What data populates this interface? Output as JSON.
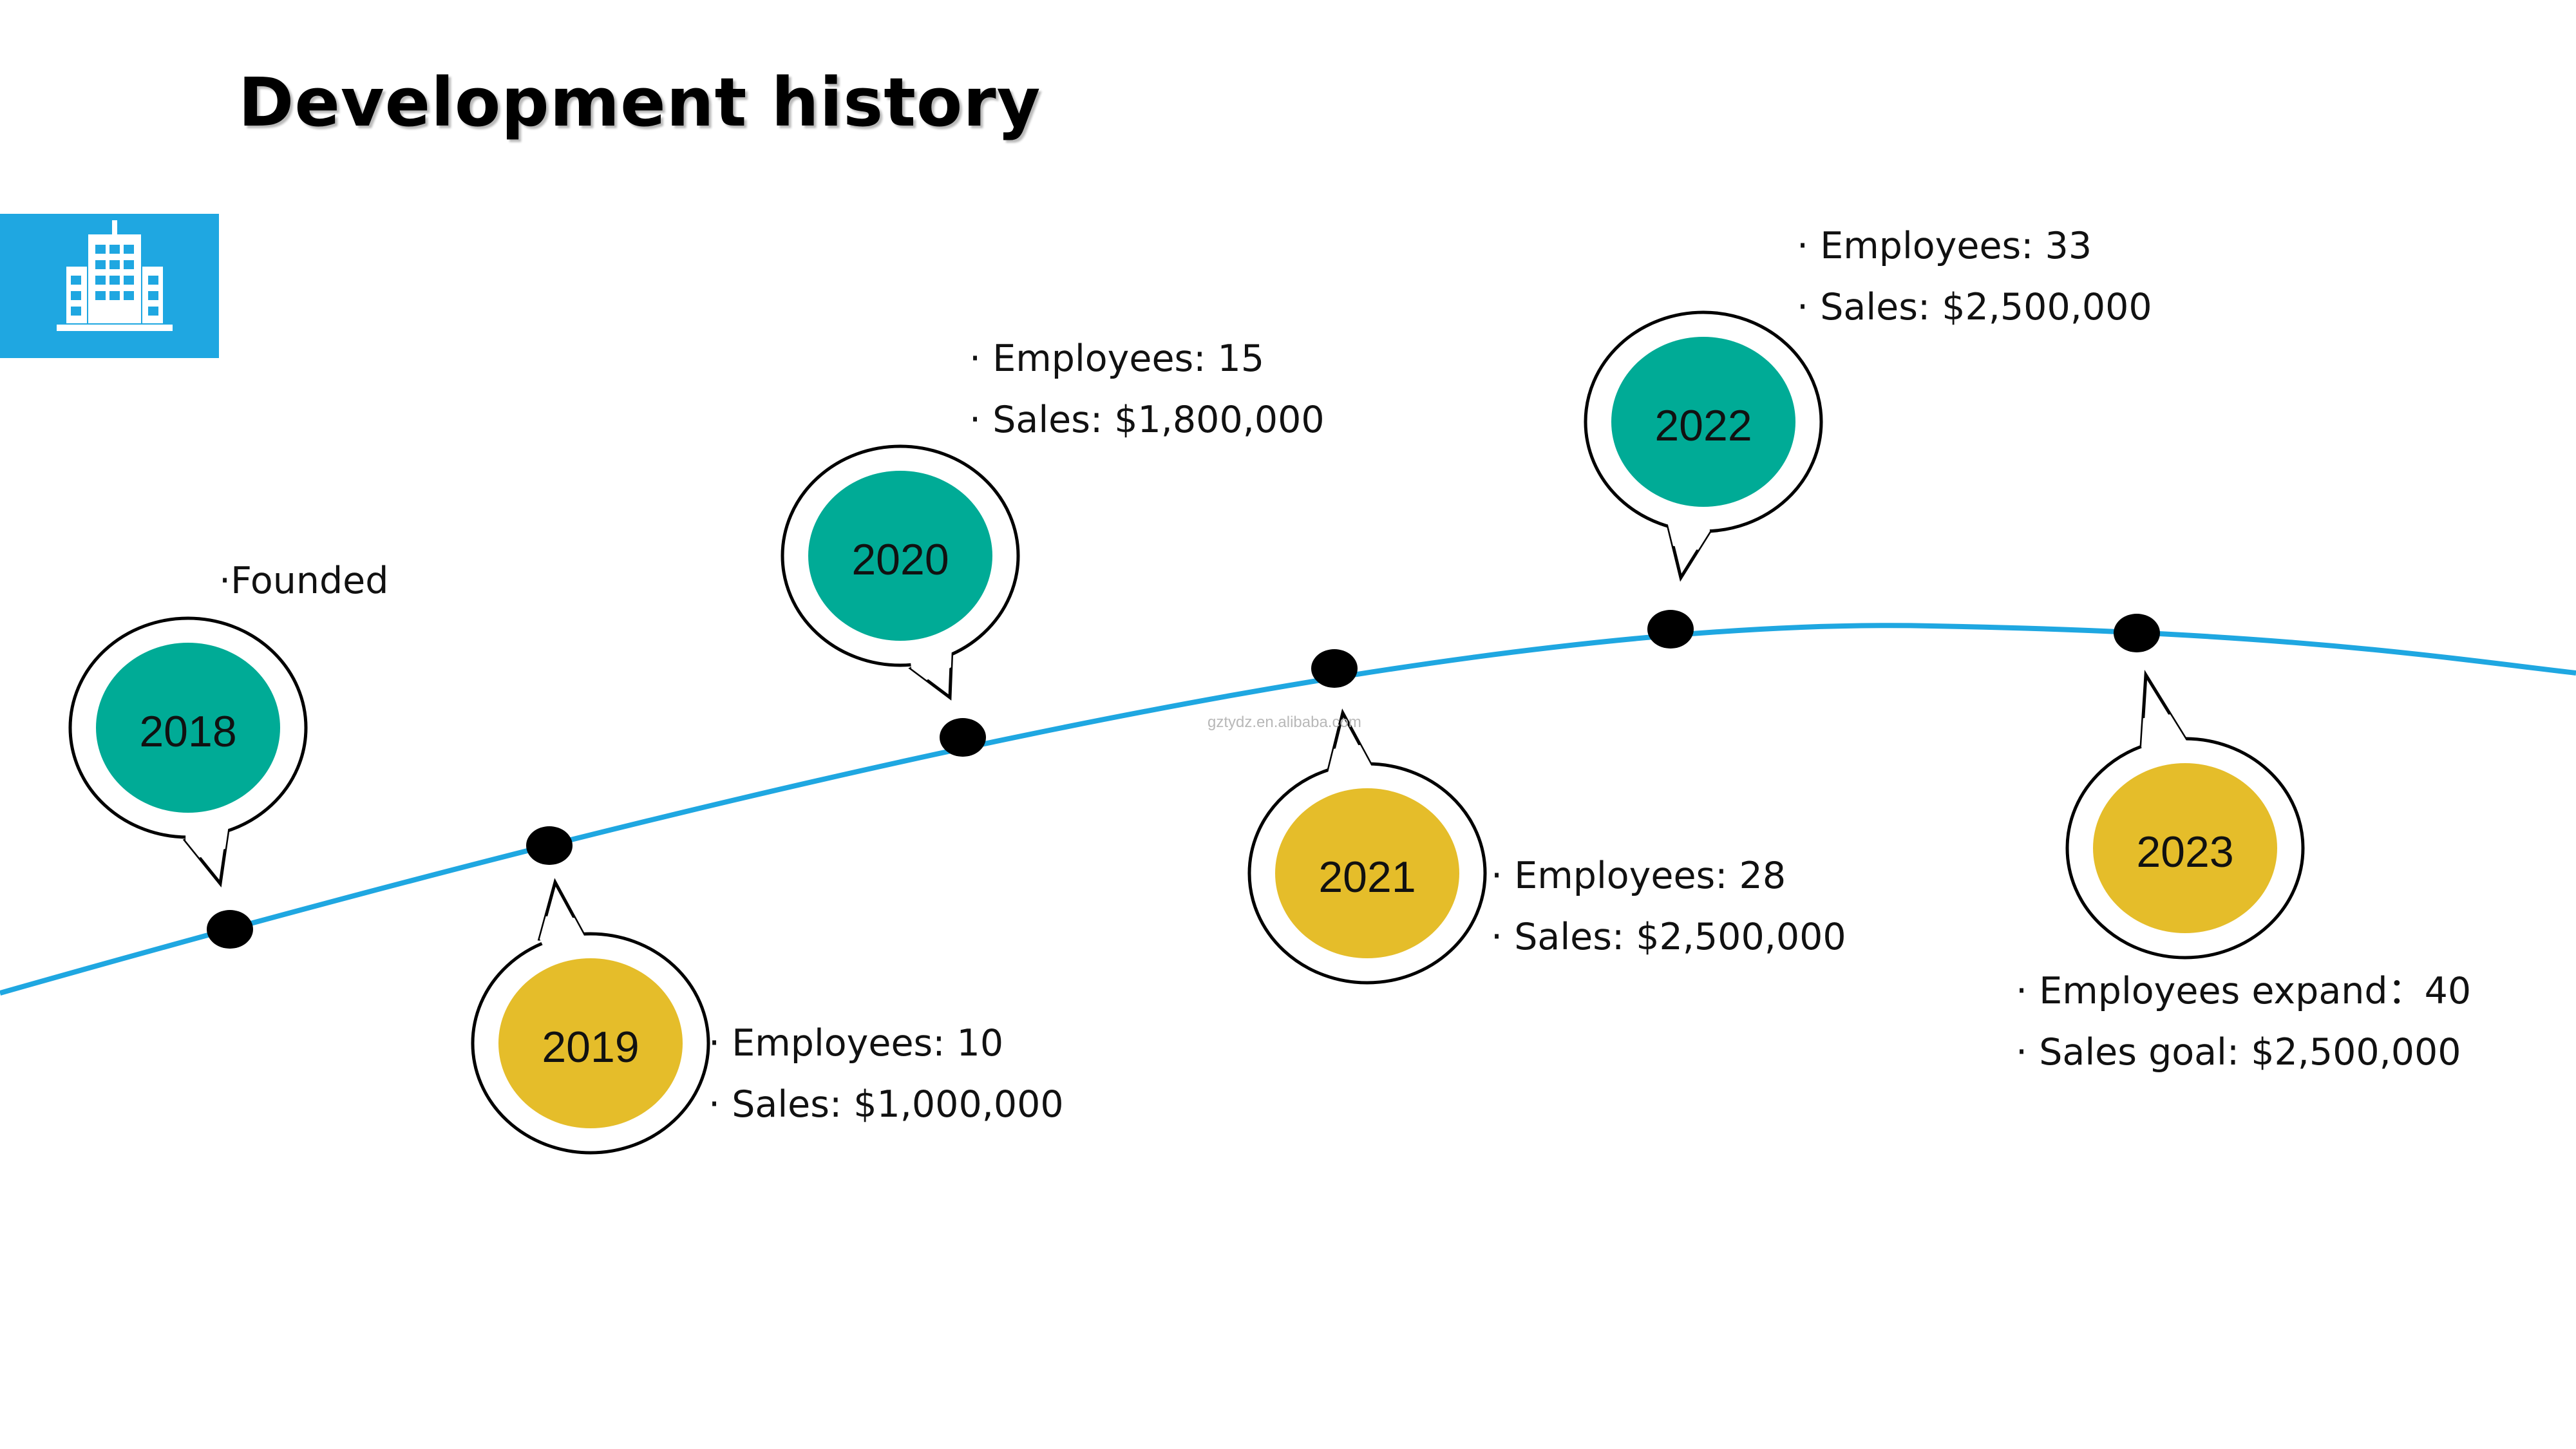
{
  "title": "Development history",
  "colors": {
    "timeline": "#1fa7e1",
    "teal": "#00ab96",
    "gold": "#e5bd2a",
    "icon_bg": "#1fa7e1"
  },
  "icon": "building-icon",
  "milestones": [
    {
      "year": "2018",
      "color": "teal",
      "lines": [
        "·Founded"
      ]
    },
    {
      "year": "2019",
      "color": "gold",
      "lines": [
        "· Employees: 10",
        "· Sales: $1,000,000"
      ]
    },
    {
      "year": "2020",
      "color": "teal",
      "lines": [
        "· Employees: 15",
        "· Sales: $1,800,000"
      ]
    },
    {
      "year": "2021",
      "color": "gold",
      "lines": [
        "· Employees: 28",
        "· Sales: $2,500,000"
      ]
    },
    {
      "year": "2022",
      "color": "teal",
      "lines": [
        "· Employees: 33",
        "· Sales: $2,500,000"
      ]
    },
    {
      "year": "2023",
      "color": "gold",
      "lines": [
        "· Employees expand：40",
        "· Sales goal:  $2,500,000"
      ]
    }
  ],
  "watermark": "gztydz.en.alibaba.com"
}
